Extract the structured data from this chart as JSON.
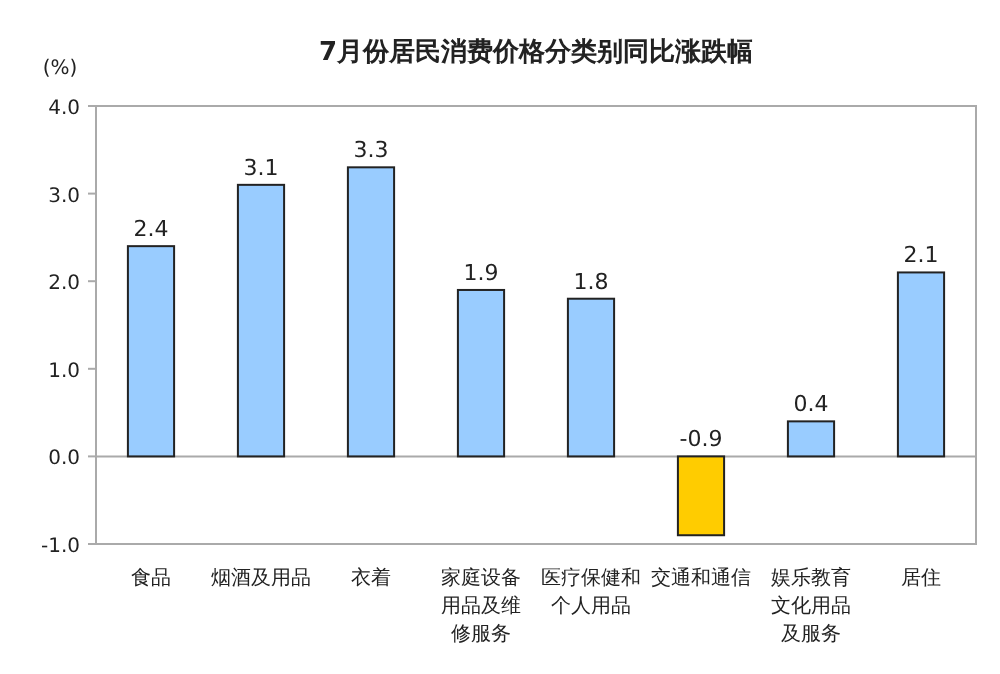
{
  "chart_data": {
    "type": "bar",
    "title": "7月份居民消费价格分类别同比涨跌幅",
    "ylabel": "(%)",
    "categories": [
      "食品",
      "烟酒及用品",
      "衣着",
      "家庭设备用品及维修服务",
      "医疗保健和个人用品",
      "交通和通信",
      "娱乐教育文化用品及服务",
      "居住"
    ],
    "values": [
      2.4,
      3.1,
      3.3,
      1.9,
      1.8,
      -0.9,
      0.4,
      2.1
    ],
    "colors": [
      "#99ccff",
      "#99ccff",
      "#99ccff",
      "#99ccff",
      "#99ccff",
      "#ffcc00",
      "#99ccff",
      "#99ccff"
    ],
    "ylim": [
      -1.0,
      4.0
    ],
    "yticks": [
      {
        "value": -1,
        "label": "-1.0"
      },
      {
        "value": 0,
        "label": "0.0"
      },
      {
        "value": 1,
        "label": "1.0"
      },
      {
        "value": 2,
        "label": "2.0"
      },
      {
        "value": 3,
        "label": "3.0"
      },
      {
        "value": 4,
        "label": "4.0"
      }
    ],
    "ref_lines": [
      {
        "axis": "y",
        "value": 0,
        "color": "#aaaaaa"
      }
    ],
    "data_labels": true,
    "grid": false
  }
}
